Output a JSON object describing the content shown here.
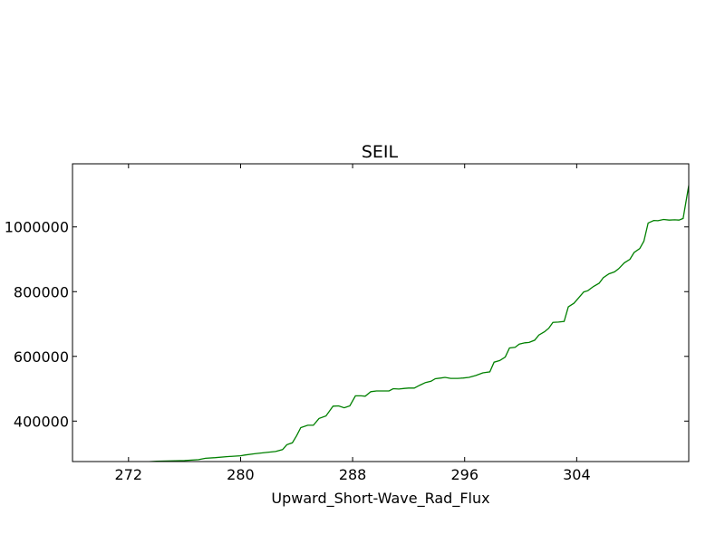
{
  "chart_data": {
    "type": "line",
    "title": "SEIL",
    "xlabel": "Upward_Short-Wave_Rad_Flux",
    "ylabel": "",
    "xlim": [
      268,
      312
    ],
    "ylim": [
      275000,
      1195000
    ],
    "x_ticks": [
      272,
      280,
      288,
      296,
      304
    ],
    "x_tick_labels": [
      "272",
      "280",
      "288",
      "296",
      "304"
    ],
    "y_ticks": [
      400000,
      600000,
      800000,
      1000000
    ],
    "y_tick_labels": [
      "400000",
      "600000",
      "800000",
      "1000000"
    ],
    "grid": false,
    "series": [
      {
        "color": "#008000",
        "points": [
          [
            267.0,
            240000
          ],
          [
            270.0,
            262000
          ],
          [
            271.5,
            268000
          ],
          [
            273.2,
            274000
          ],
          [
            274.0,
            276000
          ],
          [
            275.0,
            277000
          ],
          [
            276.0,
            278000
          ],
          [
            277.0,
            281000
          ],
          [
            277.5,
            285000
          ],
          [
            278.2,
            287000
          ],
          [
            279.0,
            290000
          ],
          [
            280.0,
            293000
          ],
          [
            280.3,
            295000
          ],
          [
            281.0,
            299000
          ],
          [
            281.8,
            303000
          ],
          [
            282.5,
            306000
          ],
          [
            283.0,
            312000
          ],
          [
            283.3,
            327000
          ],
          [
            283.7,
            333000
          ],
          [
            284.0,
            355000
          ],
          [
            284.3,
            380000
          ],
          [
            284.8,
            387000
          ],
          [
            285.2,
            387000
          ],
          [
            285.6,
            408000
          ],
          [
            286.1,
            416000
          ],
          [
            286.6,
            446000
          ],
          [
            287.0,
            447000
          ],
          [
            287.4,
            441000
          ],
          [
            287.8,
            447000
          ],
          [
            288.2,
            478000
          ],
          [
            288.6,
            478000
          ],
          [
            288.9,
            477000
          ],
          [
            289.3,
            491000
          ],
          [
            289.7,
            493000
          ],
          [
            290.2,
            493000
          ],
          [
            290.6,
            493000
          ],
          [
            290.9,
            500000
          ],
          [
            291.3,
            499000
          ],
          [
            291.7,
            501000
          ],
          [
            292.0,
            502000
          ],
          [
            292.4,
            502000
          ],
          [
            292.8,
            511000
          ],
          [
            293.2,
            519000
          ],
          [
            293.6,
            523000
          ],
          [
            293.9,
            531000
          ],
          [
            294.3,
            533000
          ],
          [
            294.6,
            535000
          ],
          [
            295.0,
            532000
          ],
          [
            295.5,
            532000
          ],
          [
            295.9,
            533000
          ],
          [
            296.3,
            535000
          ],
          [
            296.8,
            541000
          ],
          [
            297.3,
            549000
          ],
          [
            297.8,
            552000
          ],
          [
            298.1,
            582000
          ],
          [
            298.5,
            587000
          ],
          [
            298.9,
            598000
          ],
          [
            299.2,
            626000
          ],
          [
            299.6,
            628000
          ],
          [
            299.9,
            638000
          ],
          [
            300.3,
            642000
          ],
          [
            300.6,
            643000
          ],
          [
            301.0,
            650000
          ],
          [
            301.3,
            666000
          ],
          [
            301.7,
            676000
          ],
          [
            302.0,
            687000
          ],
          [
            302.3,
            705000
          ],
          [
            302.7,
            706000
          ],
          [
            303.1,
            708000
          ],
          [
            303.4,
            753000
          ],
          [
            303.8,
            764000
          ],
          [
            304.1,
            779000
          ],
          [
            304.5,
            799000
          ],
          [
            304.8,
            803000
          ],
          [
            305.2,
            816000
          ],
          [
            305.6,
            826000
          ],
          [
            305.9,
            843000
          ],
          [
            306.3,
            855000
          ],
          [
            306.7,
            861000
          ],
          [
            307.0,
            871000
          ],
          [
            307.4,
            889000
          ],
          [
            307.8,
            900000
          ],
          [
            308.1,
            921000
          ],
          [
            308.5,
            933000
          ],
          [
            308.8,
            956000
          ],
          [
            309.1,
            1012000
          ],
          [
            309.5,
            1020000
          ],
          [
            309.8,
            1019000
          ],
          [
            310.2,
            1023000
          ],
          [
            310.6,
            1021000
          ],
          [
            311.0,
            1022000
          ],
          [
            311.3,
            1021000
          ],
          [
            311.6,
            1026000
          ],
          [
            312.0,
            1128000
          ],
          [
            312.3,
            1145000
          ],
          [
            312.6,
            1170000
          ],
          [
            313.0,
            1190000
          ],
          [
            313.4,
            1196000
          ],
          [
            313.8,
            1200000
          ]
        ]
      }
    ]
  }
}
